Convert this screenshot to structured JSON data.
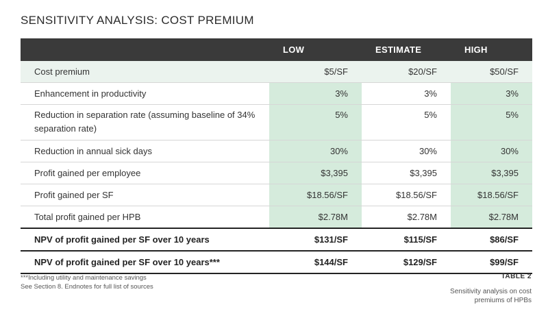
{
  "title": "SENSITIVITY ANALYSIS: COST PREMIUM",
  "table": {
    "headers": [
      "",
      "LOW",
      "ESTIMATE",
      "HIGH"
    ],
    "rows": [
      {
        "label": "Cost premium",
        "values": [
          "$5/SF",
          "$20/SF",
          "$50/SF"
        ]
      },
      {
        "label": "Enhancement in productivity",
        "values": [
          "3%",
          "3%",
          "3%"
        ]
      },
      {
        "label": "Reduction in separation rate (assuming baseline of 34% separation rate)",
        "values": [
          "5%",
          "5%",
          "5%"
        ]
      },
      {
        "label": "Reduction in annual sick days",
        "values": [
          "30%",
          "30%",
          "30%"
        ]
      },
      {
        "label": "Profit gained per employee",
        "values": [
          "$3,395",
          "$3,395",
          "$3,395"
        ]
      },
      {
        "label": "Profit gained per SF",
        "values": [
          "$18.56/SF",
          "$18.56/SF",
          "$18.56/SF"
        ]
      },
      {
        "label": "Total profit gained per HPB",
        "values": [
          "$2.78M",
          "$2.78M",
          "$2.78M"
        ]
      },
      {
        "label": "NPV of profit gained per SF over 10 years",
        "values": [
          "$131/SF",
          "$115/SF",
          "$86/SF"
        ]
      },
      {
        "label": "NPV of profit gained per SF over 10 years***",
        "values": [
          "$144/SF",
          "$129/SF",
          "$99/SF"
        ]
      }
    ]
  },
  "footnotes": [
    "***Including utility and maintenance savings",
    "See Section 8. Endnotes for full list of sources"
  ],
  "table_tag": "TABLE 2",
  "caption": "Sensitivity analysis on cost premiums of HPBs",
  "colors": {
    "header_bg": "#3a3a3a",
    "highlight_green": "#d5ebdc",
    "row_tint": "#ebf3ee"
  }
}
